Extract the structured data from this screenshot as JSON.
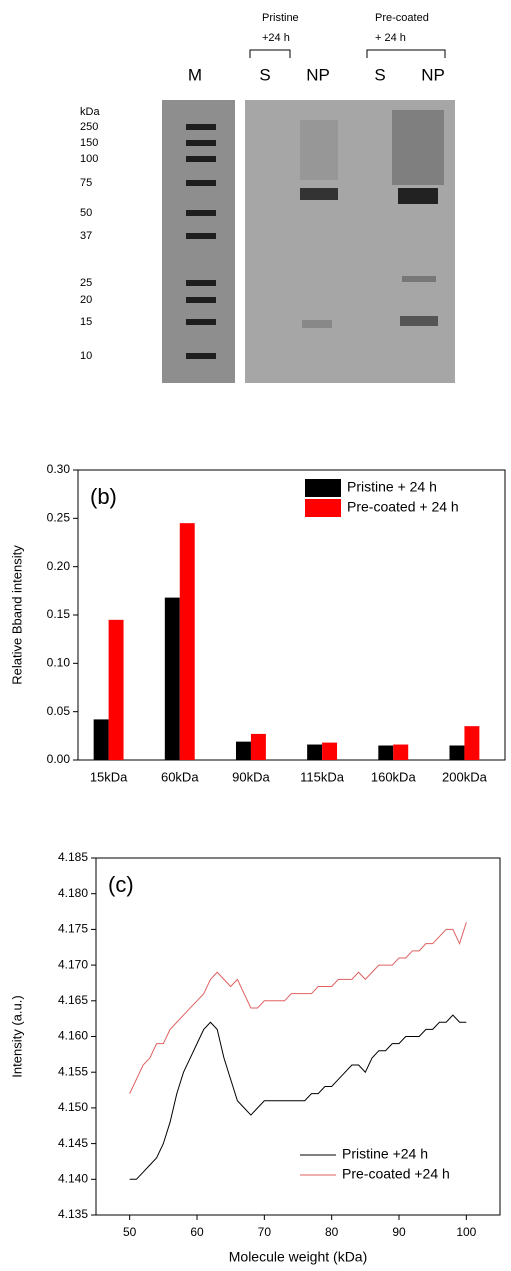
{
  "gel": {
    "groups": [
      {
        "lines": [
          "Pristine",
          "+24 h"
        ]
      },
      {
        "lines": [
          "Pre-coated",
          "+ 24 h"
        ]
      }
    ],
    "lanes": [
      "M",
      "S",
      "NP",
      "S",
      "NP"
    ],
    "ladder": {
      "unit": "kDa",
      "markers": [
        250,
        150,
        100,
        75,
        50,
        37,
        25,
        20,
        15,
        10
      ]
    }
  },
  "chart_data": [
    {
      "type": "bar",
      "annotation": "(b)",
      "ylabel": "Relative Bband intensity",
      "categories": [
        "15kDa",
        "60kDa",
        "90kDa",
        "115kDa",
        "160kDa",
        "200kDa"
      ],
      "series": [
        {
          "name": "Pristine + 24 h",
          "color": "#000000",
          "values": [
            0.042,
            0.168,
            0.019,
            0.016,
            0.015,
            0.015
          ]
        },
        {
          "name": "Pre-coated + 24 h",
          "color": "#ff0000",
          "values": [
            0.145,
            0.245,
            0.027,
            0.018,
            0.016,
            0.035
          ]
        }
      ],
      "ylim": [
        0,
        0.3
      ],
      "yticks": [
        {
          "value": 0,
          "label": "0.00"
        },
        0.05,
        {
          "value": 0.1,
          "label": "0.10"
        },
        0.15,
        {
          "value": 0.2,
          "label": "0.20"
        },
        0.25,
        {
          "value": 0.3,
          "label": "0.30"
        }
      ],
      "legend": "upper right"
    },
    {
      "type": "line",
      "annotation": "(c)",
      "xlabel": "Molecule weight (kDa)",
      "ylabel": "Intensity (a.u.)",
      "x": [
        50,
        51,
        52,
        53,
        54,
        55,
        56,
        57,
        58,
        59,
        60,
        61,
        62,
        63,
        64,
        65,
        66,
        67,
        68,
        69,
        70,
        71,
        72,
        73,
        74,
        75,
        76,
        77,
        78,
        79,
        80,
        81,
        82,
        83,
        84,
        85,
        86,
        87,
        88,
        89,
        90,
        91,
        92,
        93,
        94,
        95,
        96,
        97,
        98,
        99,
        100
      ],
      "series": [
        {
          "name": "Pristine +24 h",
          "color": "#000000",
          "values": [
            4.14,
            4.14,
            4.141,
            4.142,
            4.143,
            4.145,
            4.148,
            4.152,
            4.155,
            4.157,
            4.159,
            4.161,
            4.162,
            4.161,
            4.157,
            4.154,
            4.151,
            4.15,
            4.149,
            4.15,
            4.151,
            4.151,
            4.151,
            4.151,
            4.151,
            4.151,
            4.151,
            4.152,
            4.152,
            4.153,
            4.153,
            4.154,
            4.155,
            4.156,
            4.156,
            4.155,
            4.157,
            4.158,
            4.158,
            4.159,
            4.159,
            4.16,
            4.16,
            4.16,
            4.161,
            4.161,
            4.162,
            4.162,
            4.163,
            4.162,
            4.162
          ]
        },
        {
          "name": "Pre-coated +24 h",
          "color": "#e06060",
          "values": [
            4.152,
            4.154,
            4.156,
            4.157,
            4.159,
            4.159,
            4.161,
            4.162,
            4.163,
            4.164,
            4.165,
            4.166,
            4.168,
            4.169,
            4.168,
            4.167,
            4.168,
            4.166,
            4.164,
            4.164,
            4.165,
            4.165,
            4.165,
            4.165,
            4.166,
            4.166,
            4.166,
            4.166,
            4.167,
            4.167,
            4.167,
            4.168,
            4.168,
            4.168,
            4.169,
            4.168,
            4.169,
            4.17,
            4.17,
            4.17,
            4.171,
            4.171,
            4.172,
            4.172,
            4.173,
            4.173,
            4.174,
            4.175,
            4.175,
            4.173,
            4.176
          ]
        }
      ],
      "xlim": [
        45,
        105
      ],
      "xticks": [
        50,
        60,
        70,
        80,
        90,
        100
      ],
      "ylim": [
        4.135,
        4.185
      ],
      "yticks": [
        4.135,
        {
          "value": 4.14,
          "label": "4.140"
        },
        4.145,
        {
          "value": 4.15,
          "label": "4.150"
        },
        4.155,
        {
          "value": 4.16,
          "label": "4.160"
        },
        4.165,
        {
          "value": 4.17,
          "label": "4.170"
        },
        4.175,
        {
          "value": 4.18,
          "label": "4.180"
        },
        4.185
      ],
      "legend": "lower right"
    }
  ]
}
